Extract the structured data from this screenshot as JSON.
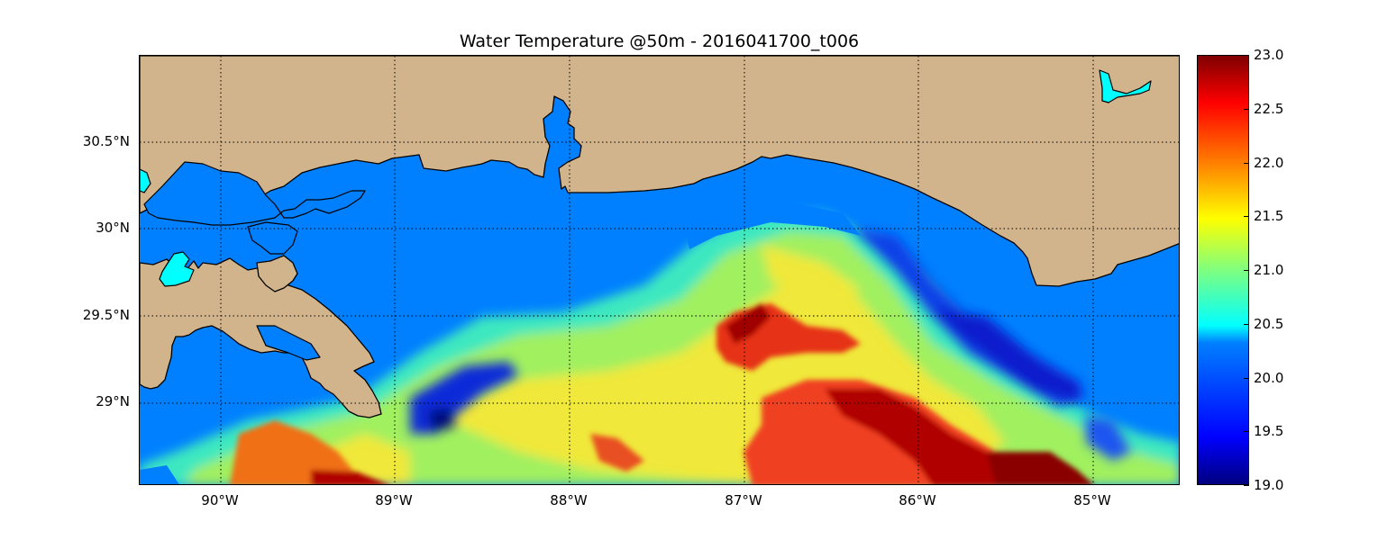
{
  "title": "Water Temperature @50m - 2016041700_t006",
  "map": {
    "lat_labels": [
      "30.5°N",
      "30°N",
      "29.5°N",
      "29°N"
    ],
    "lon_labels": [
      "90°W",
      "89°W",
      "88°W",
      "87°W",
      "86°W",
      "85°W"
    ],
    "land_color": "#d2b48c",
    "water_color": "#0080ff",
    "lake_color": "#00ffff",
    "colormap": "jet"
  },
  "colorbar": {
    "ticks": [
      "23.0",
      "22.5",
      "22.0",
      "21.5",
      "21.0",
      "20.5",
      "20.0",
      "19.5",
      "19.0"
    ],
    "min": 19.0,
    "max": 23.0
  }
}
